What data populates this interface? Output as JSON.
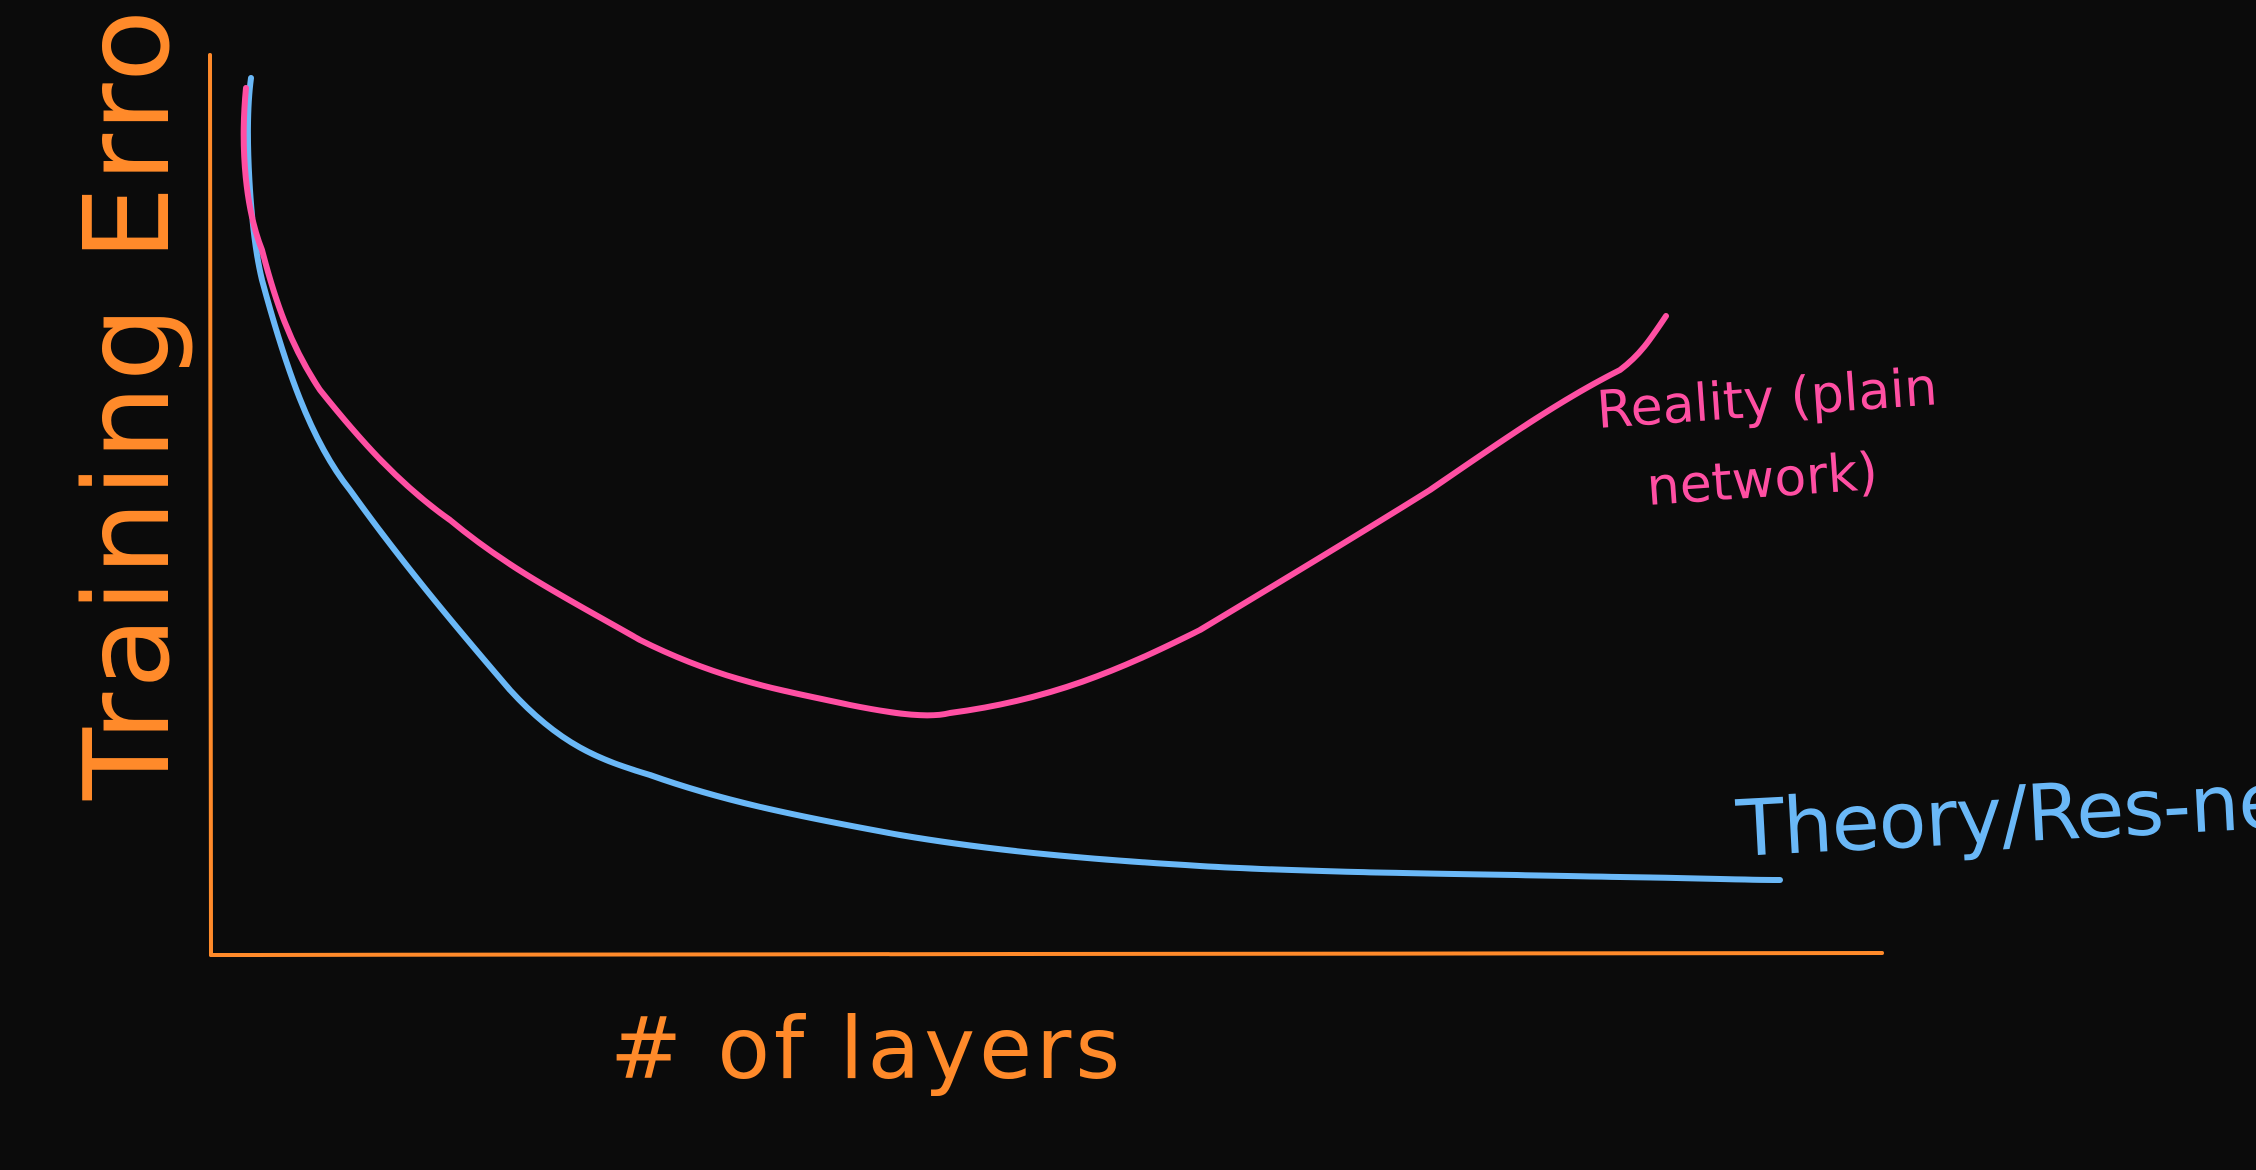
{
  "diagram": {
    "axes": {
      "x_label": "# of layers",
      "y_label": "Training Error",
      "color": "#ff8a2a"
    },
    "curves": [
      {
        "id": "reality",
        "label_lines": [
          "Reality (plain",
          "network)"
        ],
        "color": "#ff4fa3"
      },
      {
        "id": "theory",
        "label_lines": [
          "Theory/Res-net"
        ],
        "color": "#6ab8f7"
      }
    ]
  }
}
